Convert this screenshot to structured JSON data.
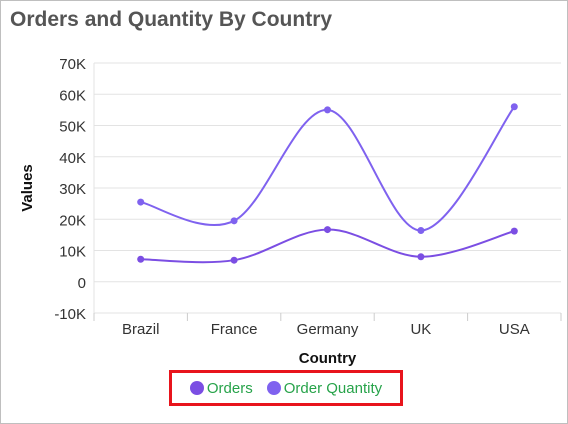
{
  "title": "Orders and Quantity By Country",
  "chart_data": {
    "type": "line",
    "curve": "smooth-spline",
    "categories": [
      "Brazil",
      "France",
      "Germany",
      "UK",
      "USA"
    ],
    "series": [
      {
        "name": "Orders",
        "color": "#7b4ee3",
        "values": [
          7200,
          6900,
          16700,
          8000,
          16200
        ]
      },
      {
        "name": "Order Quantity",
        "color": "#7f62ef",
        "values": [
          25500,
          19500,
          55000,
          16400,
          56000
        ]
      }
    ],
    "xlabel": "Country",
    "ylabel": "Values",
    "ylim": [
      -10000,
      70000
    ],
    "yticks": [
      {
        "value": -10000,
        "label": "-10K"
      },
      {
        "value": 0,
        "label": "0"
      },
      {
        "value": 10000,
        "label": "10K"
      },
      {
        "value": 20000,
        "label": "20K"
      },
      {
        "value": 30000,
        "label": "30K"
      },
      {
        "value": 40000,
        "label": "40K"
      },
      {
        "value": 50000,
        "label": "50K"
      },
      {
        "value": 60000,
        "label": "60K"
      },
      {
        "value": 70000,
        "label": "70K"
      }
    ],
    "grid": true,
    "legend_position": "bottom-center",
    "legend_highlight_color": "#e8141c",
    "legend_text_color": "#27a34a"
  }
}
